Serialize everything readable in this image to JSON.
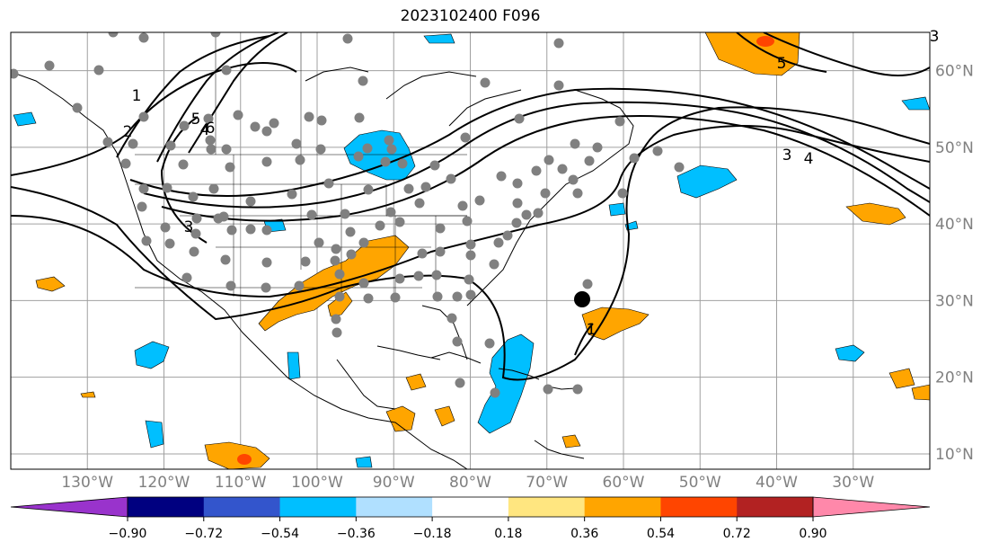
{
  "title": "2023102400 F096",
  "map": {
    "projection": "plate-carree",
    "lon_range": [
      -140,
      -20
    ],
    "lat_range": [
      8,
      65
    ],
    "lon_ticks": [
      "130°W",
      "120°W",
      "110°W",
      "100°W",
      "90°W",
      "80°W",
      "70°W",
      "60°W",
      "50°W",
      "40°W",
      "30°W"
    ],
    "lat_ticks": [
      "10°N",
      "20°N",
      "30°N",
      "40°N",
      "50°N",
      "60°N"
    ],
    "grid": true,
    "contour_labels": [
      "1",
      "2",
      "3",
      "4",
      "5",
      "6",
      "3",
      "4",
      "5",
      "1",
      "3"
    ]
  },
  "colorbar": {
    "orientation": "horizontal",
    "extend": "both",
    "ticks": [
      "−0.90",
      "−0.72",
      "−0.54",
      "−0.36",
      "−0.18",
      "0.18",
      "0.36",
      "0.54",
      "0.72",
      "0.90"
    ],
    "colors": [
      "#9933cc",
      "#000080",
      "#3355cc",
      "#00bfff",
      "#b0e0ff",
      "#ffffff",
      "#ffe680",
      "#ffa500",
      "#ff4500",
      "#b22222",
      "#ff88aa"
    ]
  },
  "colors": {
    "positive": "#ffa500",
    "strong_positive": "#ff4500",
    "negative": "#00bfff",
    "station": "#808080",
    "marker": "#000000"
  }
}
